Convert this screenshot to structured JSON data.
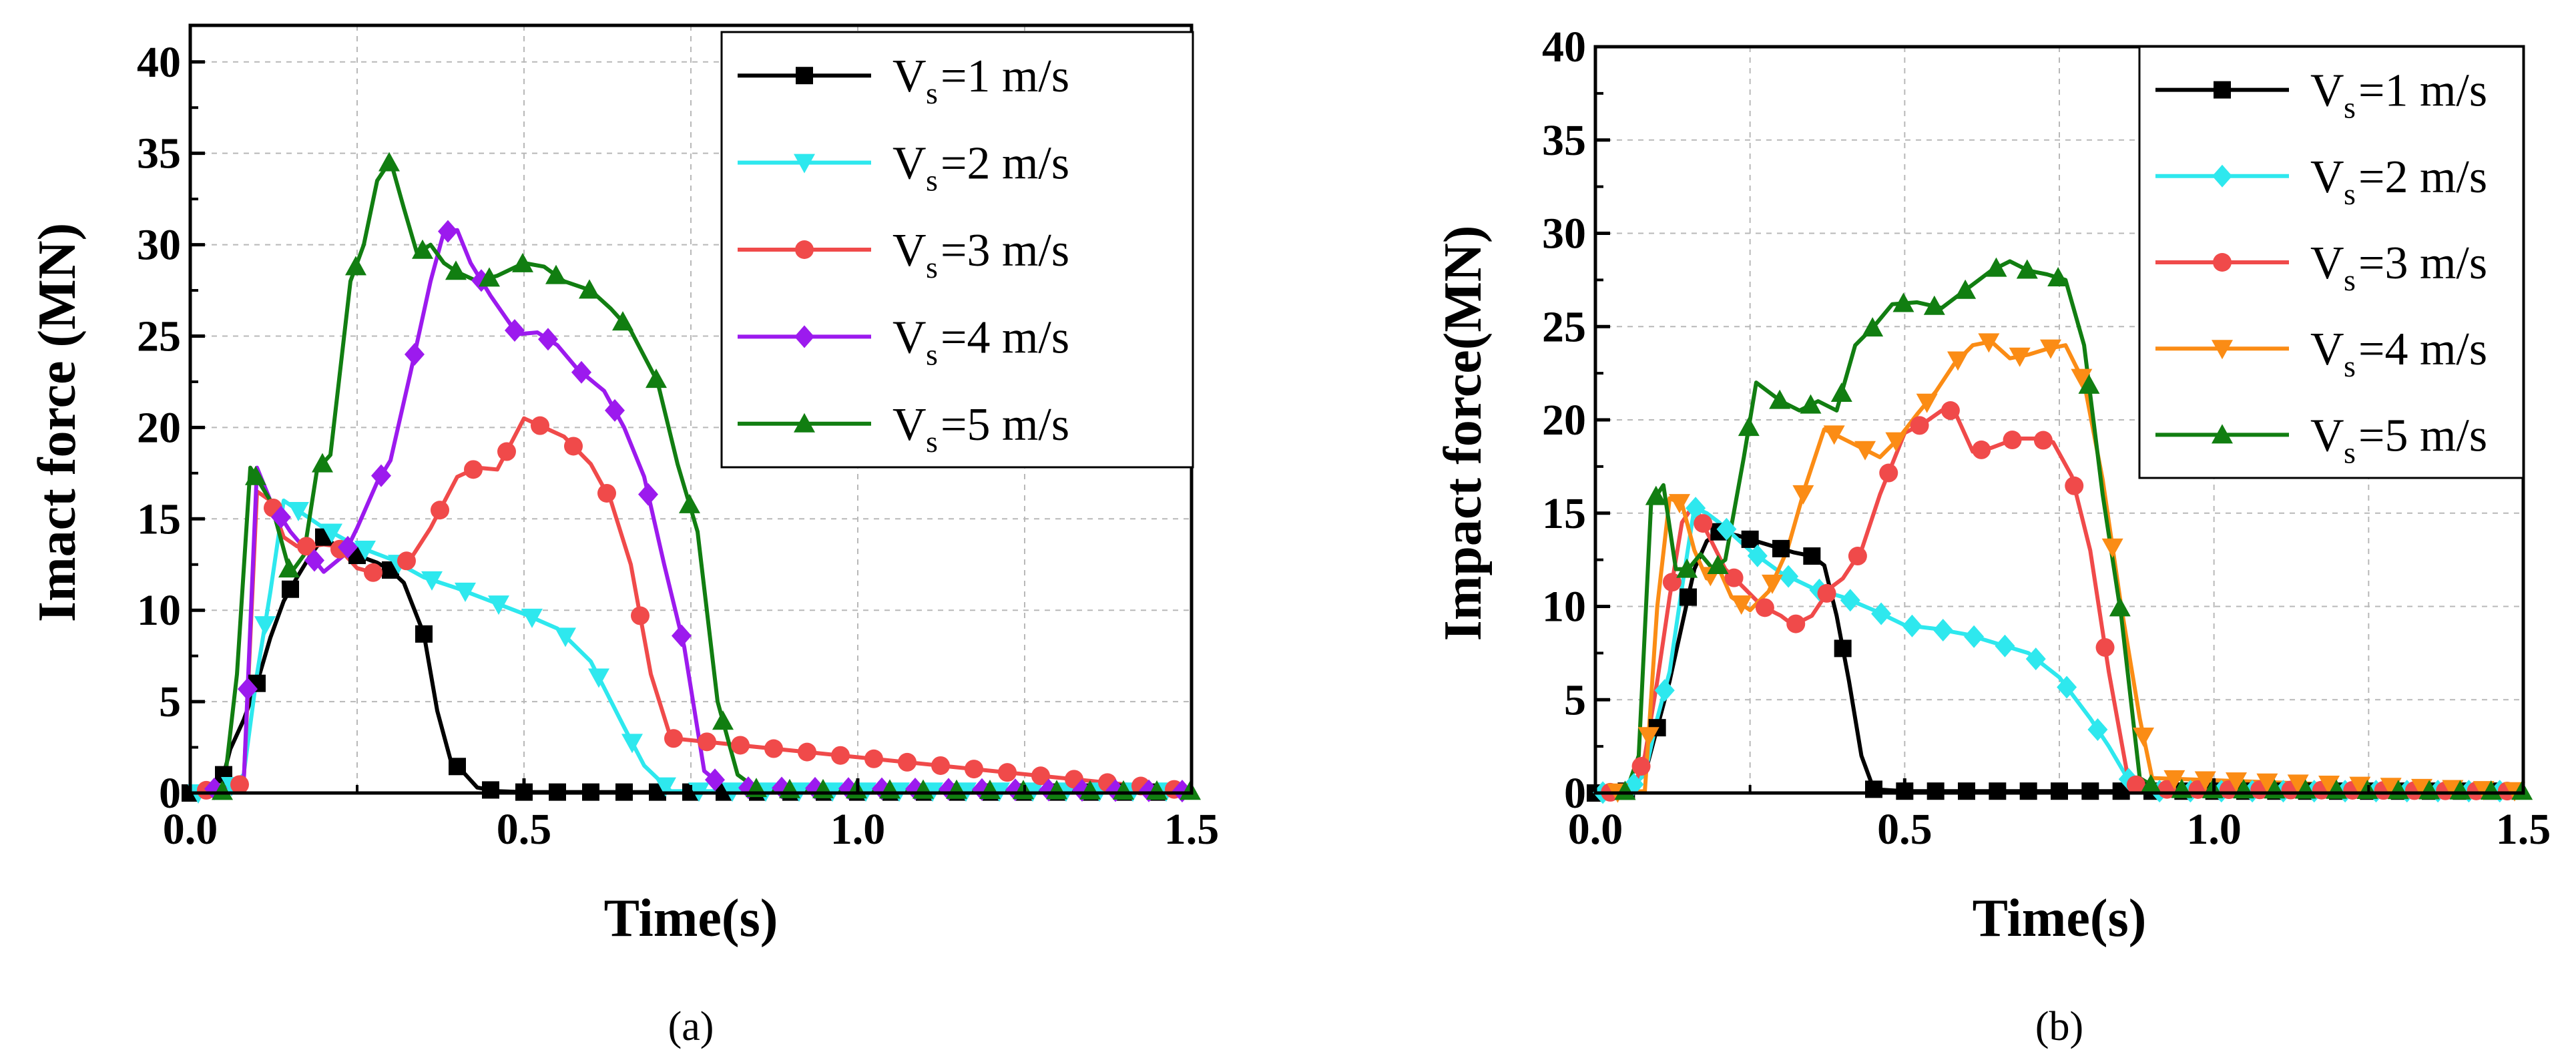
{
  "chart_data": [
    {
      "type": "line",
      "panel_label": "(a)",
      "title": "",
      "xlabel": "Time(s)",
      "ylabel": "Imact force (MN)",
      "xlim": [
        0,
        1.5
      ],
      "ylim": [
        0,
        42
      ],
      "xticks": [
        0,
        0.5,
        1.0,
        1.5
      ],
      "xtick_labels": [
        "0.0",
        "0.5",
        "1.0",
        "1.5"
      ],
      "yticks": [
        0,
        5,
        10,
        15,
        20,
        25,
        30,
        35,
        40
      ],
      "ytick_labels": [
        "0",
        "5",
        "10",
        "15",
        "20",
        "25",
        "30",
        "35",
        "40"
      ],
      "grid": true,
      "legend_position": "top-right",
      "series": [
        {
          "name": "Vs=1 m/s",
          "legend_main": "V",
          "legend_sub": "s",
          "legend_rest": "=1 m/s",
          "color": "#000000",
          "marker": "square",
          "x": [
            0,
            0.03,
            0.05,
            0.06,
            0.08,
            0.1,
            0.12,
            0.14,
            0.16,
            0.18,
            0.2,
            0.22,
            0.25,
            0.28,
            0.3,
            0.32,
            0.35,
            0.37,
            0.39,
            0.41,
            0.43,
            0.46,
            0.5,
            0.55,
            1.5
          ],
          "y": [
            0,
            0.2,
            1,
            2.4,
            4,
            6,
            8.5,
            10.5,
            11.8,
            13,
            14,
            13.5,
            13,
            12.6,
            12.2,
            11.5,
            8.7,
            4.5,
            1.8,
            1.1,
            0.3,
            0.1,
            0.05,
            0.05,
            0.05
          ]
        },
        {
          "name": "Vs=2 m/s",
          "legend_main": "V",
          "legend_sub": "s",
          "legend_rest": "=2 m/s",
          "color": "#2ee8ee",
          "marker": "triangle-down",
          "x": [
            0,
            0.05,
            0.08,
            0.1,
            0.12,
            0.14,
            0.16,
            0.18,
            0.2,
            0.25,
            0.3,
            0.35,
            0.4,
            0.45,
            0.5,
            0.55,
            0.6,
            0.65,
            0.68,
            0.72,
            0.75,
            1.5
          ],
          "y": [
            0,
            0,
            1,
            6.5,
            11,
            16,
            15.5,
            15,
            14.5,
            13.5,
            12.8,
            11.8,
            11.2,
            10.5,
            9.8,
            9,
            7.2,
            3.6,
            1.5,
            0.1,
            0.1,
            0.1
          ]
        },
        {
          "name": "Vs=3 m/s",
          "legend_main": "V",
          "legend_sub": "s",
          "legend_rest": "=3 m/s",
          "color": "#f04a4a",
          "marker": "circle",
          "x": [
            0,
            0.08,
            0.1,
            0.12,
            0.14,
            0.16,
            0.18,
            0.2,
            0.22,
            0.25,
            0.28,
            0.3,
            0.33,
            0.36,
            0.4,
            0.43,
            0.46,
            0.5,
            0.53,
            0.56,
            0.6,
            0.63,
            0.66,
            0.69,
            0.72,
            1.5
          ],
          "y": [
            0,
            0.5,
            16.5,
            16,
            14,
            13.5,
            13.5,
            13.6,
            13.5,
            12.3,
            12,
            12.3,
            12.8,
            14.5,
            17.3,
            17.8,
            17.7,
            20.5,
            20,
            19.5,
            18,
            16,
            12.5,
            6.5,
            3,
            0.1
          ]
        },
        {
          "name": "Vs=4 m/s",
          "legend_main": "V",
          "legend_sub": "s",
          "legend_rest": "=4 m/s",
          "color": "#9c1aee",
          "marker": "diamond",
          "x": [
            0,
            0.08,
            0.1,
            0.12,
            0.15,
            0.18,
            0.2,
            0.23,
            0.25,
            0.28,
            0.3,
            0.33,
            0.36,
            0.38,
            0.4,
            0.42,
            0.45,
            0.49,
            0.52,
            0.55,
            0.58,
            0.62,
            0.65,
            0.68,
            0.71,
            0.74,
            0.77,
            0.8,
            1.5
          ],
          "y": [
            0,
            0.5,
            17.8,
            16,
            14.3,
            13,
            12.1,
            13,
            14.5,
            17,
            18.2,
            23,
            28,
            30.7,
            30.8,
            29,
            27.2,
            25.1,
            25.2,
            24.5,
            23.2,
            22,
            20,
            17.3,
            12.5,
            8,
            1.2,
            0.3,
            0.1
          ]
        },
        {
          "name": "Vs=5 m/s",
          "legend_main": "V",
          "legend_sub": "s",
          "legend_rest": "=5 m/s",
          "color": "#117e11",
          "marker": "triangle-up",
          "x": [
            0,
            0.05,
            0.07,
            0.09,
            0.12,
            0.15,
            0.17,
            0.19,
            0.21,
            0.24,
            0.26,
            0.28,
            0.3,
            0.32,
            0.34,
            0.36,
            0.38,
            0.4,
            0.43,
            0.46,
            0.5,
            0.53,
            0.56,
            0.6,
            0.63,
            0.66,
            0.7,
            0.73,
            0.76,
            0.79,
            0.82,
            0.85,
            1.5
          ],
          "y": [
            0,
            0.1,
            6.5,
            17.8,
            16,
            12,
            13,
            17.7,
            18.5,
            28,
            30,
            33.5,
            34.6,
            32,
            29.5,
            30,
            29,
            28.5,
            28,
            28.3,
            29,
            28.8,
            28,
            27.5,
            26.5,
            25.3,
            22.5,
            18,
            14.3,
            5,
            1,
            0.2,
            0.1
          ]
        }
      ]
    },
    {
      "type": "line",
      "panel_label": "(b)",
      "title": "",
      "xlabel": "Time(s)",
      "ylabel": "Impact force(MN)",
      "xlim": [
        0,
        1.5
      ],
      "ylim": [
        0,
        40
      ],
      "xticks": [
        0,
        0.5,
        1.0,
        1.5
      ],
      "xtick_labels": [
        "0.0",
        "0.5",
        "1.0",
        "1.5"
      ],
      "yticks": [
        0,
        5,
        10,
        15,
        20,
        25,
        30,
        35,
        40
      ],
      "ytick_labels": [
        "0",
        "5",
        "10",
        "15",
        "20",
        "25",
        "30",
        "35",
        "40"
      ],
      "grid": true,
      "legend_position": "top-right",
      "series": [
        {
          "name": "Vs=1 m/s",
          "legend_main": "V",
          "legend_sub": "s",
          "legend_rest": "=1 m/s",
          "color": "#000000",
          "marker": "square",
          "x": [
            0,
            0.05,
            0.08,
            0.1,
            0.12,
            0.14,
            0.16,
            0.18,
            0.2,
            0.23,
            0.26,
            0.29,
            0.32,
            0.35,
            0.37,
            0.39,
            0.41,
            0.43,
            0.45,
            0.5,
            1.5
          ],
          "y": [
            0,
            0.1,
            1,
            3.5,
            6,
            9,
            12,
            13.5,
            14,
            13.8,
            13.5,
            13.2,
            12.9,
            12.7,
            12.2,
            9.5,
            6,
            2,
            0.2,
            0.1,
            0.1
          ]
        },
        {
          "name": "Vs=2 m/s",
          "legend_main": "V",
          "legend_sub": "s",
          "legend_rest": "=2 m/s",
          "color": "#2ee8ee",
          "marker": "diamond",
          "x": [
            0,
            0.05,
            0.08,
            0.1,
            0.12,
            0.14,
            0.16,
            0.18,
            0.2,
            0.25,
            0.3,
            0.35,
            0.4,
            0.45,
            0.5,
            0.55,
            0.6,
            0.65,
            0.7,
            0.75,
            0.8,
            0.83,
            0.86,
            0.88,
            0.9,
            1.5
          ],
          "y": [
            0,
            0.1,
            1,
            4,
            6.5,
            11,
            15.3,
            15,
            14.5,
            13,
            11.8,
            11,
            10.5,
            9.8,
            9,
            8.8,
            8.5,
            8,
            7.5,
            6.2,
            4,
            2.5,
            0.8,
            0.2,
            0.1,
            0.1
          ]
        },
        {
          "name": "Vs=3 m/s",
          "legend_main": "V",
          "legend_sub": "s",
          "legend_rest": "=3 m/s",
          "color": "#f04a4a",
          "marker": "circle",
          "x": [
            0,
            0.06,
            0.08,
            0.1,
            0.12,
            0.14,
            0.16,
            0.18,
            0.21,
            0.24,
            0.27,
            0.3,
            0.32,
            0.35,
            0.38,
            0.4,
            0.43,
            0.46,
            0.5,
            0.53,
            0.56,
            0.58,
            0.61,
            0.64,
            0.68,
            0.71,
            0.74,
            0.77,
            0.8,
            0.83,
            0.86,
            0.88,
            1.5
          ],
          "y": [
            0,
            0.1,
            2,
            6,
            10.5,
            14.5,
            15.5,
            14,
            12,
            11,
            10,
            9.5,
            9,
            9.5,
            11,
            11.5,
            13,
            16,
            19.3,
            19.8,
            20.5,
            20.5,
            18.3,
            18.5,
            19,
            19,
            18.8,
            17,
            13,
            6.5,
            1,
            0.2,
            0.1
          ]
        },
        {
          "name": "Vs=4 m/s",
          "legend_main": "V",
          "legend_sub": "s",
          "legend_rest": "=4 m/s",
          "color": "#fb8c15",
          "marker": "triangle-down",
          "x": [
            0,
            0.08,
            0.1,
            0.12,
            0.14,
            0.16,
            0.18,
            0.2,
            0.22,
            0.25,
            0.28,
            0.31,
            0.34,
            0.37,
            0.4,
            0.43,
            0.46,
            0.49,
            0.52,
            0.55,
            0.58,
            0.61,
            0.64,
            0.67,
            0.7,
            0.73,
            0.76,
            0.79,
            0.82,
            0.85,
            0.88,
            0.9,
            1.5
          ],
          "y": [
            0,
            0.1,
            10,
            15.8,
            15.5,
            13,
            11.5,
            12,
            10.5,
            9.8,
            10.8,
            13,
            16.5,
            19.5,
            19,
            18.5,
            18,
            19,
            20.3,
            21.5,
            23,
            24,
            24.2,
            23.3,
            23.5,
            23.8,
            24,
            22,
            16.8,
            10,
            4,
            0.8,
            0.1
          ]
        },
        {
          "name": "Vs=5 m/s",
          "legend_main": "V",
          "legend_sub": "s",
          "legend_rest": "=5 m/s",
          "color": "#117e11",
          "marker": "triangle-up",
          "x": [
            0,
            0.05,
            0.07,
            0.09,
            0.11,
            0.13,
            0.15,
            0.17,
            0.19,
            0.21,
            0.24,
            0.26,
            0.28,
            0.3,
            0.33,
            0.36,
            0.39,
            0.42,
            0.45,
            0.48,
            0.52,
            0.56,
            0.6,
            0.64,
            0.67,
            0.7,
            0.73,
            0.76,
            0.79,
            0.82,
            0.85,
            0.88,
            0.91,
            1.5
          ],
          "y": [
            0,
            0.1,
            2,
            15.5,
            16.5,
            12,
            12,
            12.8,
            12,
            12.5,
            18,
            22,
            21.5,
            21,
            20.5,
            21,
            20.5,
            24,
            25,
            26.2,
            26.3,
            26,
            27,
            28,
            28.5,
            28,
            27.8,
            27.5,
            24,
            16,
            9.5,
            0.8,
            0.2,
            0.1
          ]
        }
      ]
    }
  ]
}
